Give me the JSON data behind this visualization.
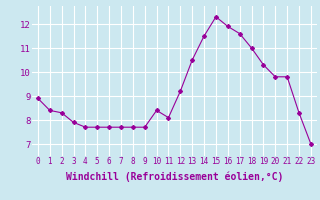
{
  "x": [
    0,
    1,
    2,
    3,
    4,
    5,
    6,
    7,
    8,
    9,
    10,
    11,
    12,
    13,
    14,
    15,
    16,
    17,
    18,
    19,
    20,
    21,
    22,
    23
  ],
  "y": [
    8.9,
    8.4,
    8.3,
    7.9,
    7.7,
    7.7,
    7.7,
    7.7,
    7.7,
    7.7,
    8.4,
    8.1,
    9.2,
    10.5,
    11.5,
    12.3,
    11.9,
    11.6,
    11.0,
    10.3,
    9.8,
    9.8,
    8.3,
    7.0
  ],
  "line_color": "#990099",
  "marker": "D",
  "marker_size": 2,
  "bg_color": "#cce8f0",
  "grid_color": "#ffffff",
  "xlabel": "Windchill (Refroidissement éolien,°C)",
  "xlabel_color": "#990099",
  "tick_color": "#990099",
  "xlabel_fontsize": 7,
  "xtick_fontsize": 5.5,
  "ytick_fontsize": 6.5,
  "ylabel_ticks": [
    7,
    8,
    9,
    10,
    11,
    12
  ],
  "xlim": [
    -0.5,
    23.5
  ],
  "ylim": [
    6.5,
    12.75
  ]
}
